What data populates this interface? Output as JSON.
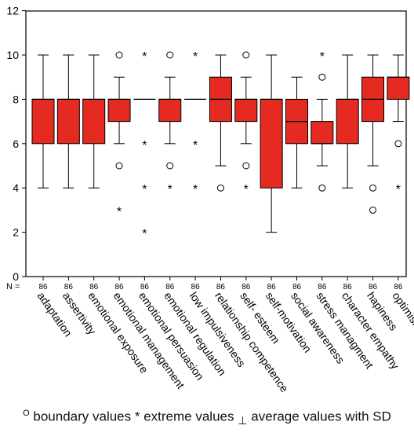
{
  "chart_data": {
    "type": "boxplot",
    "ylim": [
      0,
      12
    ],
    "yticks": [
      0,
      2,
      4,
      6,
      8,
      10,
      12
    ],
    "n_label": "N =",
    "categories": [
      "adaptation",
      "assertivity",
      "emotional exposure",
      "emotional management",
      "emotional persuasion",
      "emotional regulation",
      "low impulsiveness",
      "relationship competence",
      "self- esteem",
      "self-motivation",
      "social awareness",
      "stress managment",
      "character empathy",
      "hapiness",
      "optimism"
    ],
    "n": [
      86,
      86,
      86,
      86,
      86,
      86,
      86,
      86,
      86,
      86,
      86,
      86,
      86,
      86,
      86
    ],
    "boxes": [
      {
        "q1": 6,
        "median": 8,
        "q3": 8,
        "whisker_low": 4,
        "whisker_high": 10,
        "outliers": [],
        "extremes": []
      },
      {
        "q1": 6,
        "median": 8,
        "q3": 8,
        "whisker_low": 4,
        "whisker_high": 10,
        "outliers": [],
        "extremes": []
      },
      {
        "q1": 6,
        "median": 8,
        "q3": 8,
        "whisker_low": 4,
        "whisker_high": 10,
        "outliers": [],
        "extremes": []
      },
      {
        "q1": 7,
        "median": 8,
        "q3": 8,
        "whisker_low": 6,
        "whisker_high": 9,
        "outliers": [
          10,
          5
        ],
        "extremes": [
          3
        ]
      },
      {
        "q1": 8,
        "median": 8,
        "q3": 8,
        "whisker_low": 8,
        "whisker_high": 8,
        "outliers": [],
        "extremes": [
          10,
          6,
          4,
          2
        ]
      },
      {
        "q1": 7,
        "median": 8,
        "q3": 8,
        "whisker_low": 6,
        "whisker_high": 9,
        "outliers": [
          10,
          5
        ],
        "extremes": [
          4
        ]
      },
      {
        "q1": 8,
        "median": 8,
        "q3": 8,
        "whisker_low": 8,
        "whisker_high": 8,
        "outliers": [],
        "extremes": [
          10,
          6,
          4
        ]
      },
      {
        "q1": 7,
        "median": 8,
        "q3": 9,
        "whisker_low": 5,
        "whisker_high": 10,
        "outliers": [
          4
        ],
        "extremes": []
      },
      {
        "q1": 7,
        "median": 8,
        "q3": 8,
        "whisker_low": 6,
        "whisker_high": 9,
        "outliers": [
          10,
          5
        ],
        "extremes": [
          4
        ]
      },
      {
        "q1": 4,
        "median": 8,
        "q3": 8,
        "whisker_low": 2,
        "whisker_high": 10,
        "outliers": [],
        "extremes": []
      },
      {
        "q1": 6,
        "median": 7,
        "q3": 8,
        "whisker_low": 4,
        "whisker_high": 9,
        "outliers": [],
        "extremes": []
      },
      {
        "q1": 6,
        "median": 6,
        "q3": 7,
        "whisker_low": 5,
        "whisker_high": 8,
        "outliers": [
          9,
          4
        ],
        "extremes": [
          10
        ]
      },
      {
        "q1": 6,
        "median": 8,
        "q3": 8,
        "whisker_low": 4,
        "whisker_high": 10,
        "outliers": [],
        "extremes": []
      },
      {
        "q1": 7,
        "median": 8,
        "q3": 9,
        "whisker_low": 5,
        "whisker_high": 10,
        "outliers": [
          4,
          3
        ],
        "extremes": []
      },
      {
        "q1": 8,
        "median": 9,
        "q3": 9,
        "whisker_low": 7,
        "whisker_high": 10,
        "outliers": [
          6
        ],
        "extremes": [
          4
        ]
      }
    ],
    "box_color": "#e52a22",
    "grid": false,
    "legend": "below",
    "caption": {
      "circle_symbol": "O",
      "circle_text": " boundary values ",
      "star_symbol": "*",
      "star_text": " extreme values ",
      "bar_symbol": "⊥",
      "bar_text": " average values with SD"
    }
  }
}
